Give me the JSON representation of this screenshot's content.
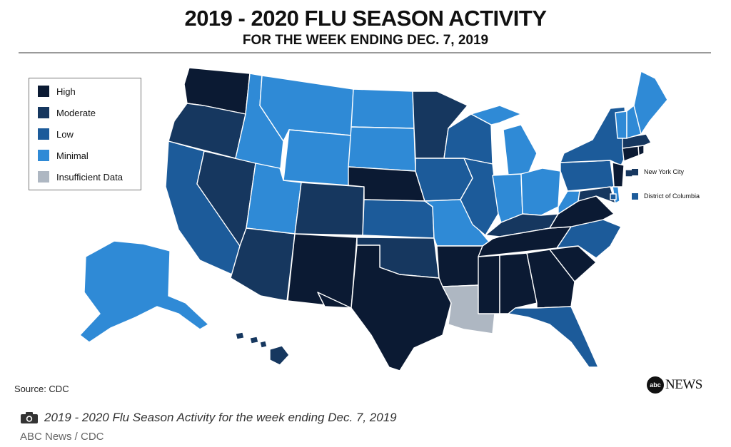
{
  "header": {
    "title": "2019 - 2020 FLU SEASON ACTIVITY",
    "subtitle": "FOR THE WEEK ENDING DEC. 7, 2019"
  },
  "colors": {
    "high": "#0b1a33",
    "moderate": "#16375f",
    "low": "#1c5b9a",
    "minimal": "#2f8ad6",
    "insufficient": "#aeb7c2",
    "border": "#ffffff"
  },
  "legend": {
    "items": [
      {
        "level": "high",
        "label": "High"
      },
      {
        "level": "moderate",
        "label": "Moderate"
      },
      {
        "level": "low",
        "label": "Low"
      },
      {
        "level": "minimal",
        "label": "Minimal"
      },
      {
        "level": "insufficient",
        "label": "Insufficient Data"
      }
    ]
  },
  "callouts": {
    "nyc": {
      "label": "New York City",
      "level": "moderate"
    },
    "dc": {
      "label": "District of Columbia",
      "level": "low"
    }
  },
  "source": "Source: CDC",
  "logo": {
    "badge": "abc",
    "text": "NEWS"
  },
  "caption": {
    "icon": "camera-icon",
    "text": "2019 - 2020 Flu Season Activity for the week ending Dec. 7, 2019",
    "credit": "ABC News / CDC"
  }
}
